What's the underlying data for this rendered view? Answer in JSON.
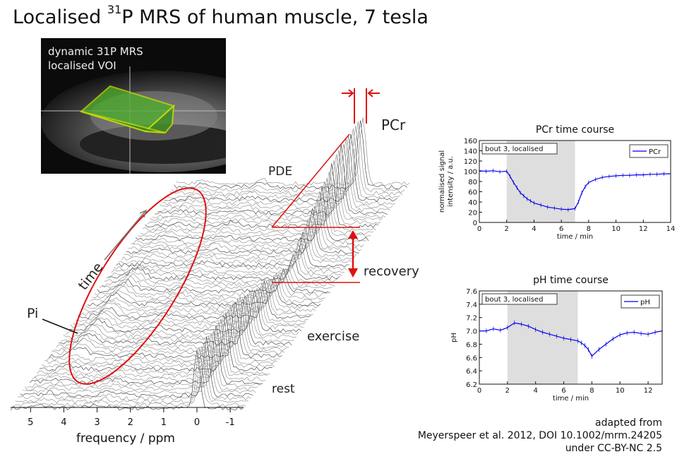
{
  "title_prefix": "Localised ",
  "title_sup": "31",
  "title_suffix": "P MRS of human muscle, 7 tesla",
  "mri": {
    "line1": "dynamic 31P MRS",
    "line2": "localised VOI"
  },
  "waterfall": {
    "labels": {
      "pcr": "PCr",
      "pde": "PDE",
      "pi": "Pi",
      "time": "time",
      "recovery": "recovery",
      "exercise": "exercise",
      "rest": "rest"
    },
    "xlabel": "frequency / ppm",
    "xticks": [
      5,
      4,
      3,
      2,
      1,
      0,
      -1
    ]
  },
  "credit": {
    "line1": "adapted from",
    "line2": "Meyerspeer et al. 2012, DOI 10.1002/mrm.24205",
    "line3": "under CC-BY-NC 2.5"
  },
  "chart_data": [
    {
      "type": "line",
      "title": "PCr time course",
      "ylabel_line1": "normalised signal",
      "ylabel_line2": "intensity / a.u.",
      "xlabel": "time / min",
      "xlim": [
        0,
        14
      ],
      "ylim": [
        0,
        160
      ],
      "xticks": [
        0,
        2,
        4,
        6,
        8,
        10,
        12,
        14
      ],
      "yticks": [
        0,
        20,
        40,
        60,
        80,
        100,
        120,
        140,
        160
      ],
      "shaded_region": [
        2,
        7
      ],
      "annotation": "bout 3, localised",
      "legend_position": "top-right",
      "series": [
        {
          "name": "PCr",
          "color": "#0000ee",
          "x": [
            0,
            0.5,
            1,
            1.5,
            2,
            2.25,
            2.5,
            2.75,
            3,
            3.25,
            3.5,
            3.75,
            4,
            4.5,
            5,
            5.5,
            6,
            6.5,
            7,
            7.25,
            7.5,
            7.75,
            8,
            8.5,
            9,
            9.5,
            10,
            10.5,
            11,
            11.5,
            12,
            12.5,
            13,
            13.5,
            14
          ],
          "y": [
            101,
            100,
            101,
            99,
            100,
            90,
            78,
            68,
            58,
            52,
            46,
            42,
            38,
            34,
            30,
            28,
            26,
            25,
            27,
            40,
            58,
            70,
            78,
            84,
            88,
            90,
            91,
            92,
            92,
            93,
            93,
            94,
            94,
            95,
            95
          ]
        }
      ]
    },
    {
      "type": "line",
      "title": "pH time course",
      "ylabel": "pH",
      "xlabel": "time / min",
      "xlim": [
        0,
        13
      ],
      "ylim": [
        6.2,
        7.6
      ],
      "xticks": [
        0,
        2,
        4,
        6,
        8,
        10,
        12
      ],
      "yticks": [
        6.2,
        6.4,
        6.6,
        6.8,
        7.0,
        7.2,
        7.4,
        7.6
      ],
      "shaded_region": [
        2,
        7
      ],
      "annotation": "bout 3, localised",
      "legend_position": "top-right",
      "series": [
        {
          "name": "pH",
          "color": "#0000ee",
          "x": [
            0,
            0.5,
            1,
            1.5,
            2,
            2.5,
            3,
            3.5,
            4,
            4.5,
            5,
            5.5,
            6,
            6.5,
            7,
            7.25,
            7.5,
            7.75,
            8,
            8.5,
            9,
            9.5,
            10,
            10.5,
            11,
            11.5,
            12,
            12.5,
            13
          ],
          "y": [
            7.0,
            7.0,
            7.03,
            7.01,
            7.05,
            7.12,
            7.1,
            7.07,
            7.02,
            6.98,
            6.95,
            6.92,
            6.89,
            6.87,
            6.85,
            6.82,
            6.78,
            6.72,
            6.62,
            6.72,
            6.8,
            6.88,
            6.94,
            6.97,
            6.98,
            6.96,
            6.95,
            6.98,
            7.0
          ]
        }
      ]
    }
  ]
}
